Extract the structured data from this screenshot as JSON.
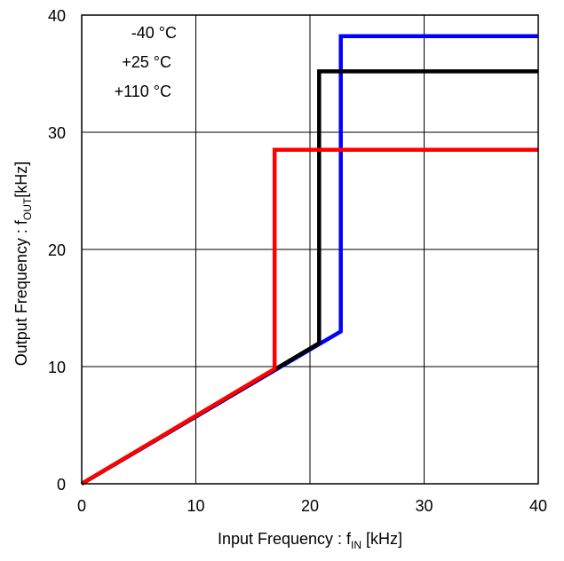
{
  "chart_data": {
    "type": "line",
    "title": "",
    "xlabel": {
      "prefix": "Input Frequency : f",
      "sub": "IN",
      "suffix": " [kHz]"
    },
    "ylabel": {
      "prefix": "Output  Frequency  : f",
      "sub": "OUT",
      "suffix": "[kHz]"
    },
    "xlim": [
      0,
      40
    ],
    "ylim": [
      0,
      40
    ],
    "xticks": [
      0,
      10,
      20,
      30,
      40
    ],
    "yticks": [
      0,
      10,
      20,
      30,
      40
    ],
    "grid": true,
    "legend": {
      "placement": "top-left",
      "entries": [
        "-40 °C",
        "+25 °C",
        "+110 °C"
      ]
    },
    "series": [
      {
        "name": "-40 °C",
        "color": "#0000ff",
        "x": [
          0,
          22.7,
          22.7,
          40
        ],
        "y": [
          0,
          13.0,
          38.2,
          38.2
        ]
      },
      {
        "name": "+25 °C",
        "color": "#000000",
        "x": [
          0,
          20.8,
          20.8,
          40
        ],
        "y": [
          0,
          12.0,
          35.2,
          35.2
        ]
      },
      {
        "name": "+110 °C",
        "color": "#ff0000",
        "x": [
          0,
          16.9,
          16.9,
          40
        ],
        "y": [
          0,
          9.8,
          28.5,
          28.5
        ]
      }
    ]
  }
}
